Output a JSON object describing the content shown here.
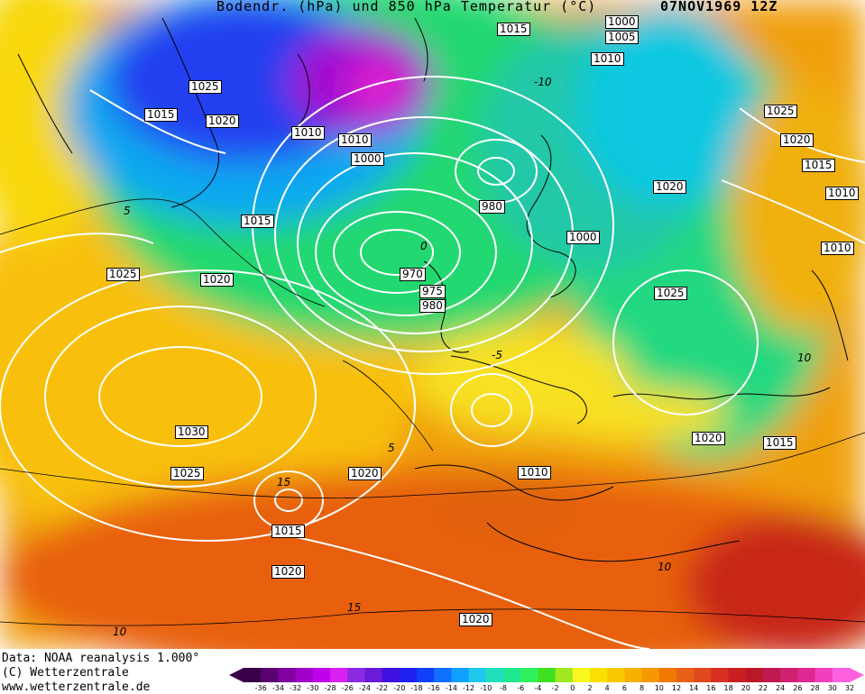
{
  "header": {
    "title": "Bodendr. (hPa) und 850 hPa Temperatur (°C)",
    "date": "07NOV1969 12Z"
  },
  "footer": {
    "source": "Data: NOAA reanalysis 1.000°",
    "copyright": "(C) Wetterzentrale",
    "url": "www.wetterzentrale.de"
  },
  "pressure_labels": [
    "1015",
    "1000",
    "1005",
    "1010",
    "1025",
    "1015",
    "1020",
    "1010",
    "1010",
    "1000",
    "1015",
    "980",
    "1000",
    "1020",
    "1025",
    "1020",
    "1015",
    "1010",
    "1010",
    "1025",
    "1020",
    "970",
    "975",
    "980",
    "1025",
    "1030",
    "1025",
    "1020",
    "1015",
    "1010",
    "1020",
    "1015",
    "1020",
    "1020"
  ],
  "temperature_labels": [
    "-10",
    "5",
    "0",
    "-5",
    "10",
    "5",
    "15",
    "10",
    "15",
    "10"
  ],
  "colorbar": {
    "values": [
      "-36",
      "-34",
      "-32",
      "-30",
      "-28",
      "-26",
      "-24",
      "-22",
      "-20",
      "-18",
      "-16",
      "-14",
      "-12",
      "-10",
      "-8",
      "-6",
      "-4",
      "-2",
      "0",
      "2",
      "4",
      "6",
      "8",
      "10",
      "12",
      "14",
      "16",
      "18",
      "20",
      "22",
      "24",
      "26",
      "28",
      "30",
      "32"
    ],
    "colors": [
      "#3a0048",
      "#5a0070",
      "#8000a0",
      "#a000c8",
      "#c000e8",
      "#d820f0",
      "#8a2be2",
      "#6a1ad8",
      "#4010e0",
      "#2020f0",
      "#1040f8",
      "#1070ff",
      "#10a0ff",
      "#20c8f0",
      "#20e0c0",
      "#20e890",
      "#30f060",
      "#40e020",
      "#a0e820",
      "#f8f820",
      "#f8e000",
      "#f8c800",
      "#f8b000",
      "#f89800",
      "#f07800",
      "#e86018",
      "#e04820",
      "#d83020",
      "#c82020",
      "#b81828",
      "#c01850",
      "#d02070",
      "#e02890",
      "#f040c0",
      "#ff60e0"
    ]
  }
}
